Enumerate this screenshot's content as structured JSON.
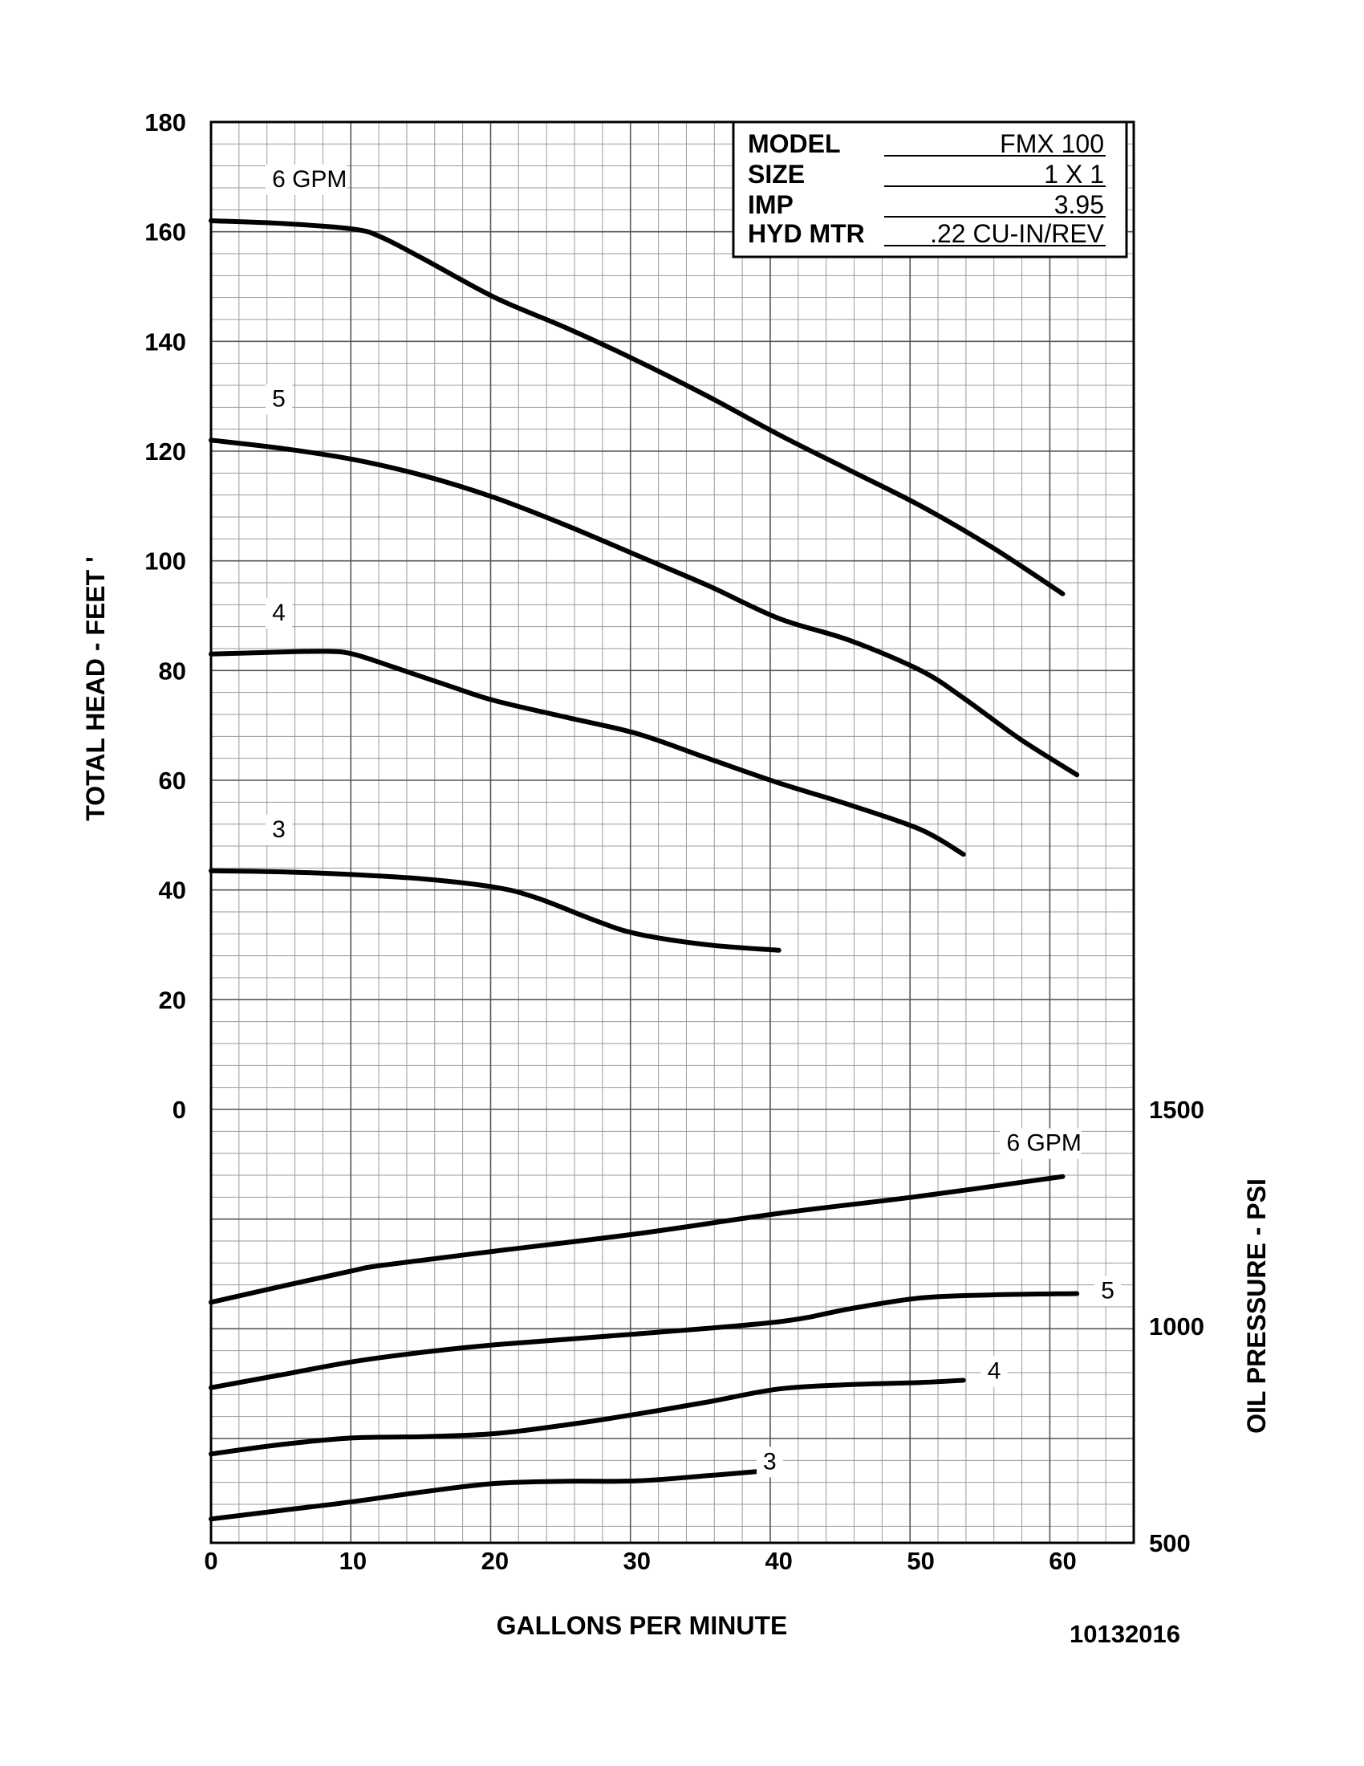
{
  "document_code": "10132016",
  "spec_table": [
    {
      "key": "MODEL",
      "value": "FMX 100"
    },
    {
      "key": "SIZE",
      "value": "1 X 1"
    },
    {
      "key": "IMP",
      "value": "3.95"
    },
    {
      "key": "HYD MTR",
      "value": ".22 CU-IN/REV"
    }
  ],
  "chart_data": {
    "type": "line",
    "xlabel": "GALLONS PER MINUTE",
    "xlim": [
      0,
      65
    ],
    "x_ticks": [
      "0",
      "10",
      "20",
      "30",
      "40",
      "50",
      "60"
    ],
    "grid": true,
    "head_axis": {
      "ylabel": "TOTAL HEAD - FEET '",
      "ylim": [
        0,
        180
      ],
      "ticks": [
        "180",
        "160",
        "140",
        "120",
        "100",
        "80",
        "60",
        "40",
        "20",
        "0"
      ],
      "series": [
        {
          "name": "6 GPM",
          "x": [
            0,
            5,
            10,
            12,
            15,
            20,
            25,
            30,
            35,
            40,
            45,
            50,
            55,
            60
          ],
          "y": [
            162,
            161.5,
            160.5,
            159,
            155,
            148,
            142.5,
            136.5,
            130,
            123,
            116.5,
            110,
            102.5,
            94
          ]
        },
        {
          "name": "5",
          "x": [
            0,
            5,
            10,
            15,
            20,
            25,
            30,
            35,
            40,
            45,
            50,
            53,
            57,
            61
          ],
          "y": [
            122,
            120.5,
            118.5,
            115.5,
            111.5,
            106.5,
            101,
            95.5,
            89.5,
            85.5,
            80,
            75,
            67.5,
            61
          ]
        },
        {
          "name": "4",
          "x": [
            0,
            4,
            8,
            10,
            13,
            17,
            20,
            25,
            30,
            35,
            40,
            45,
            50,
            53
          ],
          "y": [
            83,
            83.3,
            83.5,
            83,
            80.5,
            77,
            74.5,
            71.5,
            68.5,
            64,
            59.5,
            55.5,
            51,
            46.5
          ]
        },
        {
          "name": "3",
          "x": [
            0,
            5,
            10,
            15,
            20,
            23,
            27,
            30,
            35,
            40
          ],
          "y": [
            43.5,
            43.3,
            42.8,
            42,
            40.5,
            38.5,
            34.5,
            32,
            30,
            29
          ]
        }
      ]
    },
    "pressure_axis": {
      "ylabel": "OIL PRESSURE - PSI",
      "ylim": [
        500,
        1500
      ],
      "ticks": [
        "1500",
        "1000",
        "500"
      ],
      "series": [
        {
          "name": "6 GPM",
          "x": [
            0,
            5,
            10,
            12,
            20,
            30,
            40,
            50,
            60
          ],
          "y": [
            1055,
            1092,
            1128,
            1140,
            1173,
            1213,
            1260,
            1300,
            1345
          ]
        },
        {
          "name": "5",
          "x": [
            0,
            5,
            10,
            15,
            20,
            30,
            40,
            45,
            50,
            55,
            61
          ],
          "y": [
            858,
            888,
            918,
            940,
            957,
            982,
            1010,
            1040,
            1065,
            1072,
            1075
          ]
        },
        {
          "name": "4",
          "x": [
            0,
            5,
            10,
            15,
            20,
            25,
            30,
            35,
            40,
            45,
            50,
            53
          ],
          "y": [
            705,
            727,
            742,
            745,
            752,
            772,
            797,
            825,
            855,
            865,
            870,
            875
          ]
        },
        {
          "name": "3",
          "x": [
            0,
            5,
            10,
            15,
            20,
            25,
            30,
            35,
            39
          ],
          "y": [
            555,
            575,
            595,
            618,
            637,
            642,
            643,
            655,
            666
          ]
        }
      ]
    }
  }
}
